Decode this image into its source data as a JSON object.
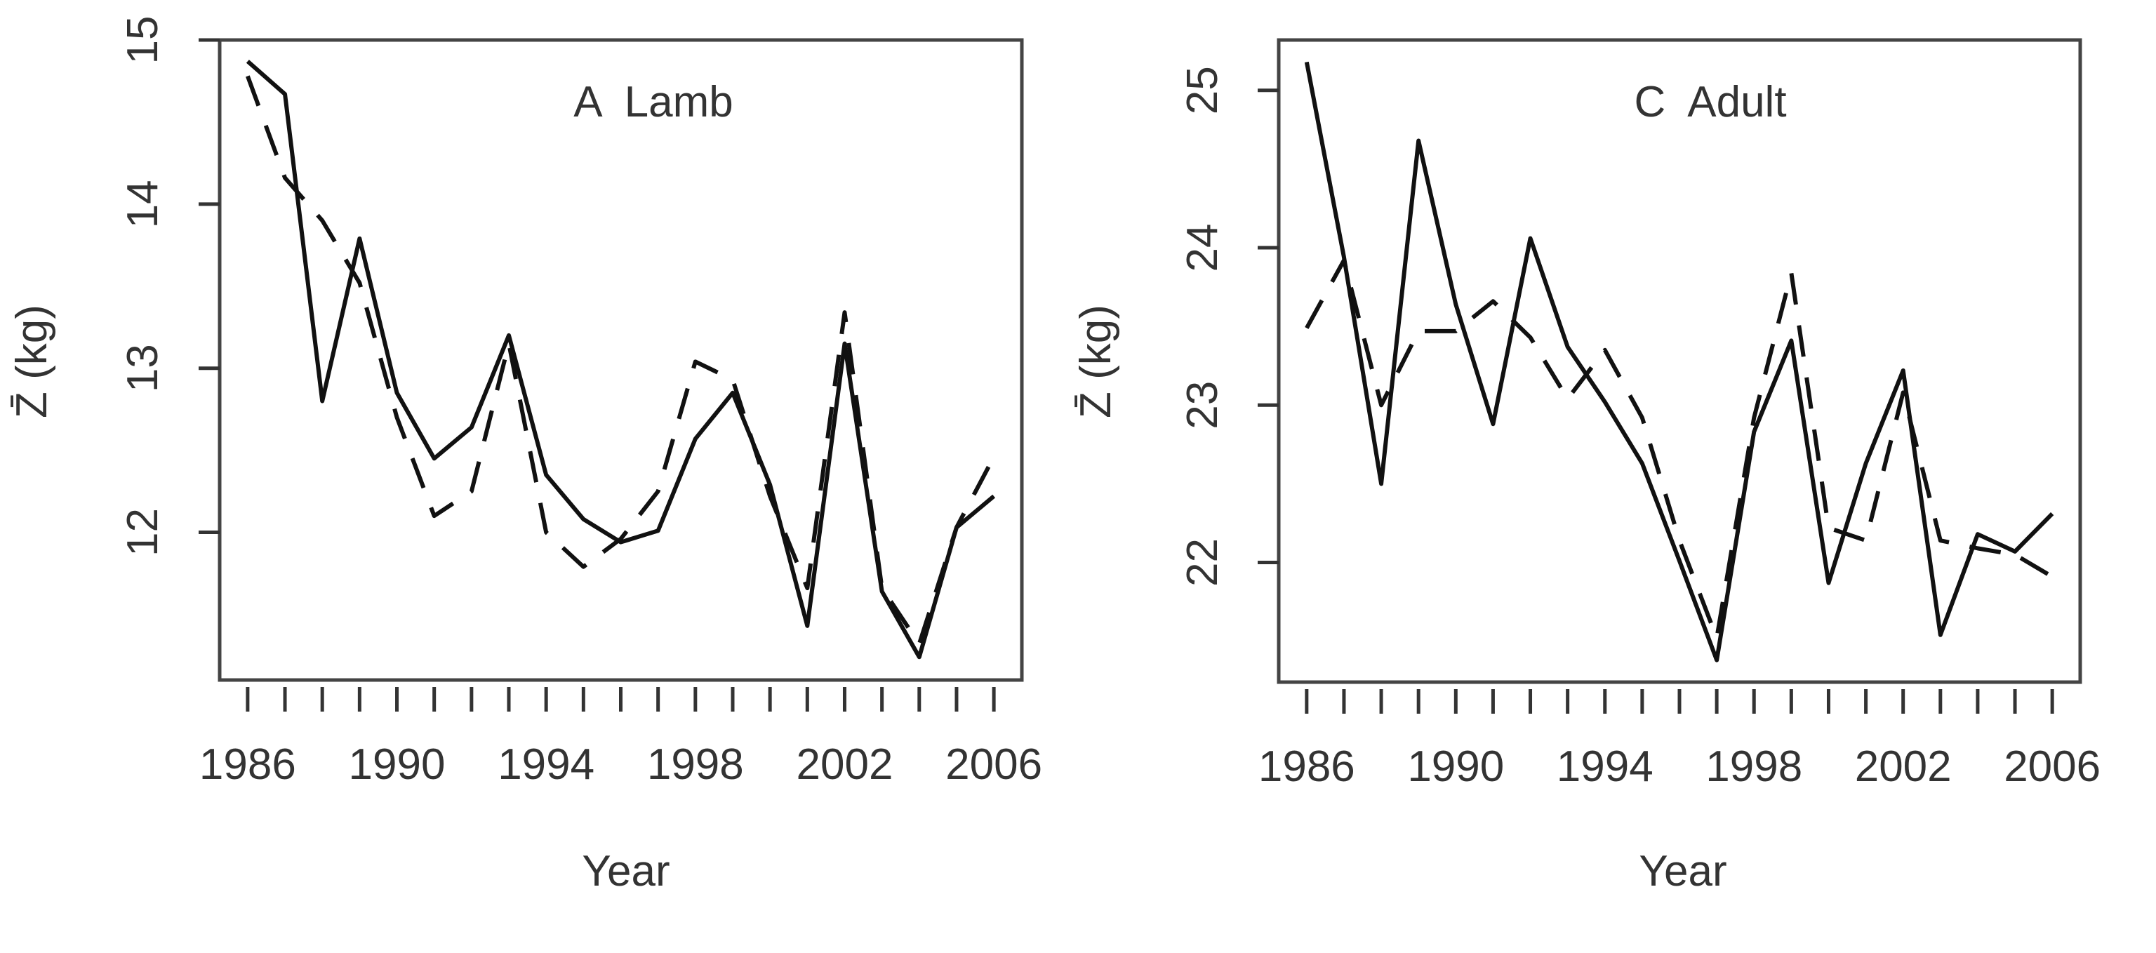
{
  "chart_data": [
    {
      "type": "line",
      "title": "A  Lamb",
      "xlabel": "Year",
      "ylabel": "Z̄ (kg)",
      "xlim": [
        1985.25,
        2006.75
      ],
      "ylim": [
        11.1,
        15
      ],
      "xticks": [
        1986,
        1990,
        1994,
        1998,
        2002,
        2006
      ],
      "xtick_marks": [
        1986,
        1987,
        1988,
        1989,
        1990,
        1991,
        1992,
        1993,
        1994,
        1995,
        1996,
        1997,
        1998,
        1999,
        2000,
        2001,
        2002,
        2003,
        2004,
        2005,
        2006
      ],
      "yticks": [
        12,
        13,
        14,
        15
      ],
      "grid": false,
      "x": [
        1986,
        1987,
        1988,
        1989,
        1990,
        1991,
        1992,
        1993,
        1994,
        1995,
        1996,
        1997,
        1998,
        1999,
        2000,
        2001,
        2002,
        2003,
        2004,
        2005,
        2006
      ],
      "series": [
        {
          "style": "solid",
          "color": "#111111",
          "values": [
            14.87,
            14.67,
            12.8,
            13.79,
            12.85,
            12.45,
            12.64,
            13.2,
            12.35,
            12.08,
            11.94,
            12.01,
            12.57,
            12.85,
            12.29,
            11.43,
            13.15,
            11.64,
            11.24,
            12.03,
            12.22
          ]
        },
        {
          "style": "dashed",
          "color": "#111111",
          "values": [
            14.78,
            14.16,
            13.9,
            13.52,
            12.7,
            12.1,
            12.25,
            13.15,
            12.0,
            11.79,
            11.96,
            12.25,
            13.04,
            12.93,
            12.22,
            11.66,
            13.34,
            11.66,
            11.32,
            12.03,
            12.46
          ]
        }
      ]
    },
    {
      "type": "line",
      "title": "C  Adult",
      "xlabel": "Year",
      "ylabel": "Z̄ (kg)",
      "xlim": [
        1985.25,
        2006.75
      ],
      "ylim": [
        21.24,
        25.32
      ],
      "xticks": [
        1986,
        1990,
        1994,
        1998,
        2002,
        2006
      ],
      "xtick_marks": [
        1986,
        1987,
        1988,
        1989,
        1990,
        1991,
        1992,
        1993,
        1994,
        1995,
        1996,
        1997,
        1998,
        1999,
        2000,
        2001,
        2002,
        2003,
        2004,
        2005,
        2006
      ],
      "yticks": [
        22,
        23,
        24,
        25
      ],
      "grid": false,
      "x": [
        1986,
        1987,
        1988,
        1989,
        1990,
        1991,
        1992,
        1993,
        1994,
        1995,
        1996,
        1997,
        1998,
        1999,
        2000,
        2001,
        2002,
        2003,
        2004,
        2005,
        2006
      ],
      "series": [
        {
          "style": "solid",
          "color": "#111111",
          "values": [
            25.18,
            23.94,
            22.5,
            24.68,
            23.64,
            22.88,
            24.06,
            23.37,
            23.02,
            22.63,
            22.01,
            21.38,
            22.83,
            23.41,
            21.87,
            22.63,
            23.22,
            21.54,
            22.18,
            22.07,
            22.31
          ]
        },
        {
          "style": "dashed",
          "color": "#111111",
          "values": [
            23.49,
            23.92,
            23.0,
            23.47,
            23.47,
            23.66,
            23.43,
            23.04,
            23.35,
            22.92,
            22.14,
            21.52,
            22.92,
            23.84,
            22.22,
            22.14,
            23.08,
            22.14,
            22.09,
            22.05,
            21.91
          ]
        }
      ]
    }
  ]
}
